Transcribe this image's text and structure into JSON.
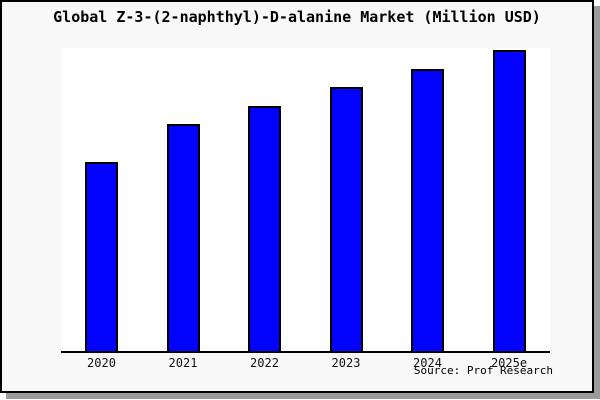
{
  "chart_data": {
    "type": "bar",
    "title": "Global Z-3-(2-naphthyl)-D-alanine Market (Million USD)",
    "categories": [
      "2020",
      "2021",
      "2022",
      "2023",
      "2024",
      "2025e"
    ],
    "values": [
      62.8,
      75.4,
      81.4,
      87.7,
      93.7,
      100
    ],
    "units": "relative bar height (no y-axis scale shown; 2025e bar = 100)",
    "xlabel": "",
    "ylabel": "",
    "ylim": [
      0,
      101
    ],
    "grid": false,
    "legend": null,
    "source_label": "Source: Prof Research",
    "colors": {
      "bar_fill": "#0101fd",
      "bar_edge": "#000000",
      "figure_bg": "#f8f8f8",
      "plot_bg": "#ffffff",
      "frame_border": "#000000",
      "shadow": "#9b9b9b",
      "title_text": "#000000",
      "tick_text": "#111111"
    }
  }
}
